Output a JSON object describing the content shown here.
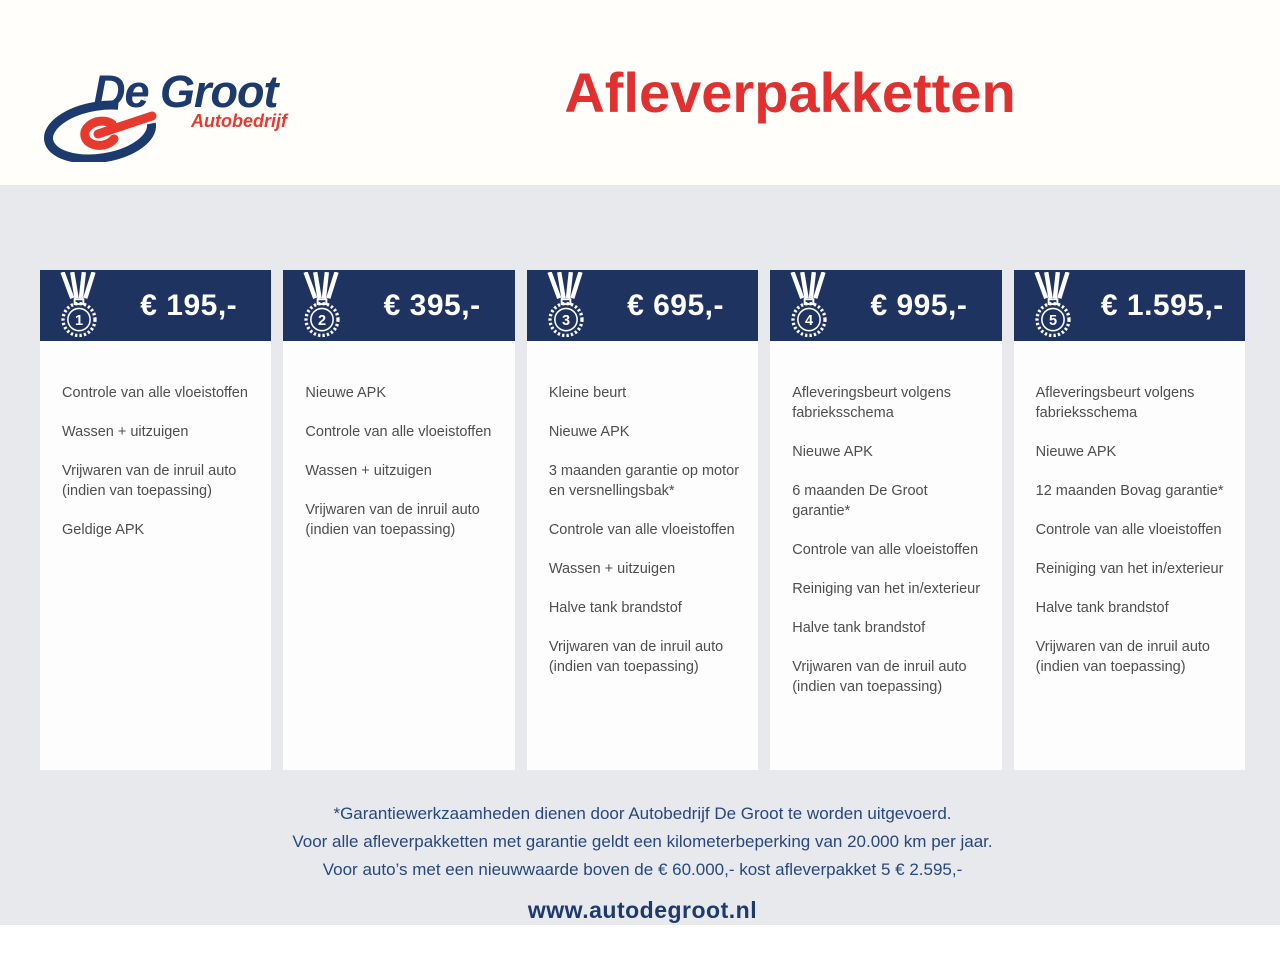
{
  "logo": {
    "name": "De Groot",
    "subtitle": "Autobedrijf"
  },
  "title": "Afleverpakketten",
  "packages": [
    {
      "number": "1",
      "price": "€ 195,-",
      "items": [
        "Controle van alle vloeistoffen",
        "Wassen + uitzuigen",
        "Vrijwaren van de inruil auto (indien van toepassing)",
        "Geldige APK"
      ]
    },
    {
      "number": "2",
      "price": "€ 395,-",
      "items": [
        "Nieuwe APK",
        "Controle van alle vloeistoffen",
        "Wassen + uitzuigen",
        "Vrijwaren van de inruil auto (indien van toepassing)"
      ]
    },
    {
      "number": "3",
      "price": "€ 695,-",
      "items": [
        "Kleine beurt",
        "Nieuwe APK",
        "3 maanden garantie op motor en versnellingsbak*",
        "Controle van alle vloeistoffen",
        "Wassen + uitzuigen",
        "Halve tank brandstof",
        "Vrijwaren van de inruil auto (indien van toepassing)"
      ]
    },
    {
      "number": "4",
      "price": "€ 995,-",
      "items": [
        "Afleveringsbeurt volgens fabrieksschema",
        "Nieuwe APK",
        "6 maanden De Groot garantie*",
        "Controle van alle vloeistoffen",
        "Reiniging van het in/exterieur",
        "Halve tank brandstof",
        "Vrijwaren van de inruil auto (indien van toepassing)"
      ]
    },
    {
      "number": "5",
      "price": "€ 1.595,-",
      "items": [
        "Afleveringsbeurt volgens fabrieksschema",
        "Nieuwe APK",
        "12 maanden Bovag garantie*",
        "Controle van alle vloeistoffen",
        "Reiniging van het in/exterieur",
        "Halve tank brandstof",
        "Vrijwaren van de inruil auto (indien van toepassing)"
      ]
    }
  ],
  "footnotes": [
    "*Garantiewerkzaamheden dienen door Autobedrijf De Groot te worden uitgevoerd.",
    "Voor alle afleverpakketten met garantie geldt een kilometerbeperking van 20.000 km per jaar.",
    "Voor auto’s met een nieuwwaarde boven de € 60.000,- kost afleverpakket 5 € 2.595,-"
  ],
  "website": "www.autodegroot.nl",
  "colors": {
    "header_navy": "#1f3361",
    "logo_navy": "#1c3a6d",
    "title_red": "#e03030",
    "logo_red": "#e8392f",
    "page_gray": "#e8e9ed",
    "footnote_blue": "#27477e",
    "body_text": "#4e4e4e"
  }
}
